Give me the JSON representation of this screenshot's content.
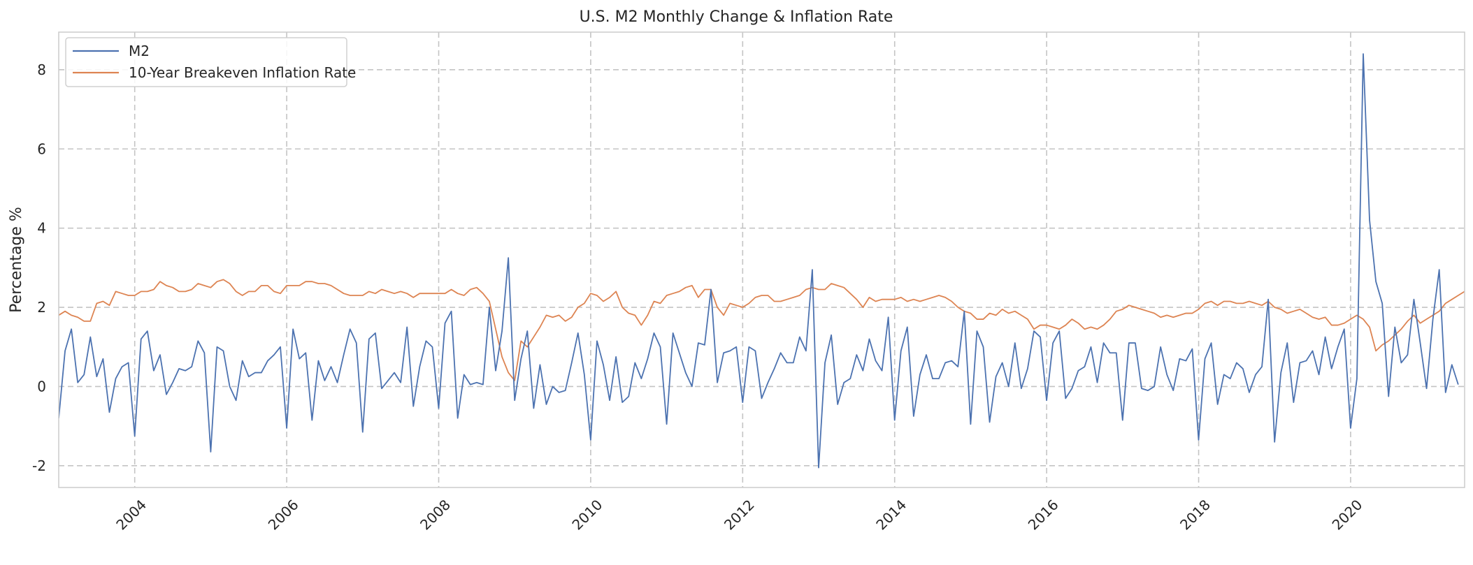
{
  "chart_data": {
    "type": "line",
    "title": "U.S. M2 Monthly Change & Inflation Rate",
    "xlabel": "",
    "ylabel": "Percentage %",
    "xlim": [
      2003.0,
      2021.5
    ],
    "ylim": [
      -2.55,
      8.95
    ],
    "x_ticks": [
      2004,
      2006,
      2008,
      2010,
      2012,
      2014,
      2016,
      2018,
      2020
    ],
    "x_tick_labels": [
      "2004",
      "2006",
      "2008",
      "2010",
      "2012",
      "2014",
      "2016",
      "2018",
      "2020"
    ],
    "y_ticks": [
      -2,
      0,
      2,
      4,
      6,
      8
    ],
    "y_tick_labels": [
      "-2",
      "0",
      "2",
      "4",
      "6",
      "8"
    ],
    "grid": true,
    "legend_position": "upper left",
    "x_start": 2003.0,
    "x_step": 0.08333,
    "series": [
      {
        "name": "M2",
        "color": "#4C72B0",
        "values": [
          -0.8,
          0.9,
          1.45,
          0.1,
          0.3,
          1.25,
          0.25,
          0.7,
          -0.65,
          0.2,
          0.5,
          0.6,
          -1.25,
          1.2,
          1.4,
          0.4,
          0.8,
          -0.2,
          0.1,
          0.45,
          0.4,
          0.5,
          1.15,
          0.85,
          -1.65,
          1.0,
          0.9,
          0.0,
          -0.35,
          0.65,
          0.25,
          0.35,
          0.35,
          0.65,
          0.8,
          1.0,
          -1.05,
          1.45,
          0.7,
          0.85,
          -0.85,
          0.65,
          0.15,
          0.5,
          0.1,
          0.8,
          1.45,
          1.1,
          -1.15,
          1.2,
          1.35,
          -0.05,
          0.15,
          0.35,
          0.1,
          1.5,
          -0.5,
          0.5,
          1.15,
          1.0,
          -0.55,
          1.6,
          1.9,
          -0.8,
          0.3,
          0.05,
          0.1,
          0.05,
          2.0,
          0.4,
          1.4,
          3.25,
          -0.35,
          0.7,
          1.4,
          -0.55,
          0.55,
          -0.45,
          0.0,
          -0.15,
          -0.1,
          0.6,
          1.35,
          0.3,
          -1.35,
          1.15,
          0.55,
          -0.35,
          0.75,
          -0.4,
          -0.25,
          0.6,
          0.2,
          0.7,
          1.35,
          1.0,
          -0.95,
          1.35,
          0.85,
          0.35,
          0.0,
          1.1,
          1.05,
          2.45,
          0.1,
          0.85,
          0.9,
          1.0,
          -0.4,
          1.0,
          0.9,
          -0.3,
          0.1,
          0.45,
          0.85,
          0.6,
          0.6,
          1.25,
          0.9,
          2.95,
          -2.05,
          0.6,
          1.3,
          -0.45,
          0.1,
          0.2,
          0.8,
          0.4,
          1.2,
          0.65,
          0.4,
          1.75,
          -0.85,
          0.9,
          1.5,
          -0.75,
          0.3,
          0.8,
          0.2,
          0.2,
          0.6,
          0.65,
          0.5,
          1.9,
          -0.95,
          1.4,
          1.0,
          -0.9,
          0.25,
          0.6,
          0.0,
          1.1,
          -0.05,
          0.45,
          1.4,
          1.25,
          -0.35,
          1.1,
          1.4,
          -0.3,
          -0.05,
          0.4,
          0.5,
          1.0,
          0.1,
          1.1,
          0.85,
          0.85,
          -0.85,
          1.1,
          1.1,
          -0.05,
          -0.1,
          0.0,
          1.0,
          0.3,
          -0.1,
          0.7,
          0.65,
          0.95,
          -1.35,
          0.7,
          1.1,
          -0.45,
          0.3,
          0.2,
          0.6,
          0.45,
          -0.15,
          0.3,
          0.5,
          2.2,
          -1.4,
          0.35,
          1.1,
          -0.4,
          0.6,
          0.65,
          0.9,
          0.3,
          1.25,
          0.45,
          1.0,
          1.45,
          -1.05,
          0.2,
          8.4,
          4.2,
          2.65,
          2.1,
          -0.25,
          1.5,
          0.6,
          0.8,
          2.2,
          1.1,
          -0.05,
          1.7,
          2.95,
          -0.15,
          0.55,
          0.05
        ]
      },
      {
        "name": "10-Year Breakeven Inflation Rate",
        "color": "#DD8452",
        "values": [
          1.8,
          1.9,
          1.8,
          1.75,
          1.65,
          1.65,
          2.1,
          2.15,
          2.05,
          2.4,
          2.35,
          2.3,
          2.3,
          2.4,
          2.4,
          2.45,
          2.65,
          2.55,
          2.5,
          2.4,
          2.4,
          2.45,
          2.6,
          2.55,
          2.5,
          2.65,
          2.7,
          2.6,
          2.4,
          2.3,
          2.4,
          2.4,
          2.55,
          2.55,
          2.4,
          2.35,
          2.55,
          2.55,
          2.55,
          2.65,
          2.65,
          2.6,
          2.6,
          2.55,
          2.45,
          2.35,
          2.3,
          2.3,
          2.3,
          2.4,
          2.35,
          2.45,
          2.4,
          2.35,
          2.4,
          2.35,
          2.25,
          2.35,
          2.35,
          2.35,
          2.35,
          2.35,
          2.45,
          2.35,
          2.3,
          2.45,
          2.5,
          2.35,
          2.15,
          1.45,
          0.75,
          0.35,
          0.15,
          1.15,
          1.0,
          1.25,
          1.5,
          1.8,
          1.75,
          1.8,
          1.65,
          1.75,
          2.0,
          2.1,
          2.35,
          2.3,
          2.15,
          2.25,
          2.4,
          2.0,
          1.85,
          1.8,
          1.55,
          1.8,
          2.15,
          2.1,
          2.3,
          2.35,
          2.4,
          2.5,
          2.55,
          2.25,
          2.45,
          2.45,
          2.0,
          1.8,
          2.1,
          2.05,
          2.0,
          2.1,
          2.25,
          2.3,
          2.3,
          2.15,
          2.15,
          2.2,
          2.25,
          2.3,
          2.45,
          2.5,
          2.45,
          2.45,
          2.6,
          2.55,
          2.5,
          2.35,
          2.2,
          2.0,
          2.25,
          2.15,
          2.2,
          2.2,
          2.2,
          2.25,
          2.15,
          2.2,
          2.15,
          2.2,
          2.25,
          2.3,
          2.25,
          2.15,
          2.0,
          1.9,
          1.85,
          1.7,
          1.7,
          1.85,
          1.8,
          1.95,
          1.85,
          1.9,
          1.8,
          1.7,
          1.45,
          1.55,
          1.55,
          1.5,
          1.45,
          1.55,
          1.7,
          1.6,
          1.45,
          1.5,
          1.45,
          1.55,
          1.7,
          1.9,
          1.95,
          2.05,
          2.0,
          1.95,
          1.9,
          1.85,
          1.75,
          1.8,
          1.75,
          1.8,
          1.85,
          1.85,
          1.95,
          2.1,
          2.15,
          2.05,
          2.15,
          2.15,
          2.1,
          2.1,
          2.15,
          2.1,
          2.05,
          2.15,
          2.0,
          1.95,
          1.85,
          1.9,
          1.95,
          1.85,
          1.75,
          1.7,
          1.75,
          1.55,
          1.55,
          1.6,
          1.7,
          1.8,
          1.7,
          1.5,
          0.9,
          1.05,
          1.15,
          1.3,
          1.45,
          1.65,
          1.8,
          1.6,
          1.7,
          1.8,
          1.9,
          2.1,
          2.2,
          2.3,
          2.4,
          2.45,
          2.45,
          2.35
        ]
      }
    ]
  }
}
